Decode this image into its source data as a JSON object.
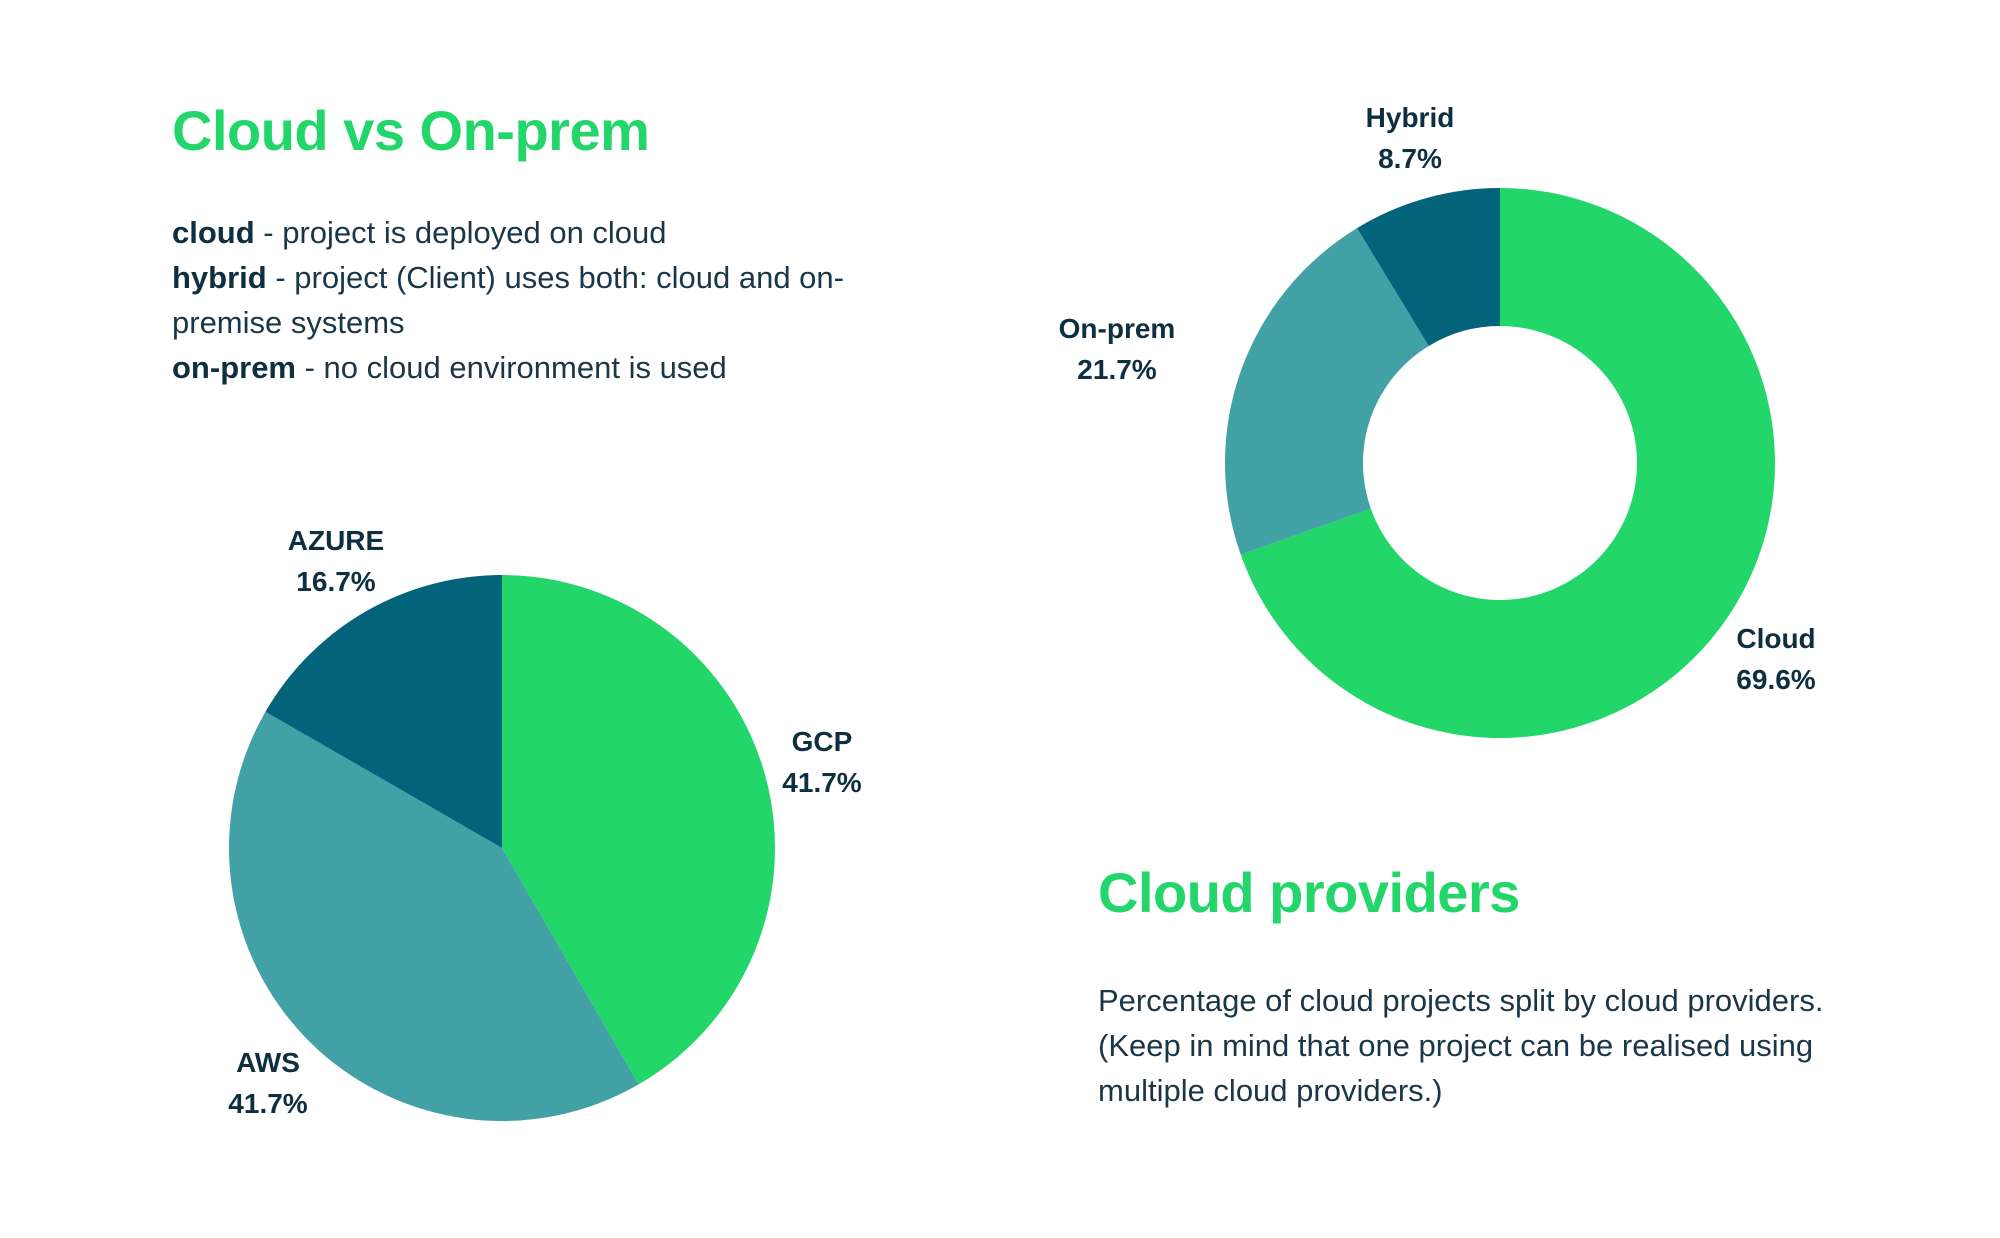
{
  "cloud_vs_onprem": {
    "title": "Cloud vs On-prem",
    "definitions": [
      {
        "term": "cloud",
        "text": " - project is deployed on cloud"
      },
      {
        "term": "hybrid",
        "text": " - project (Client) uses both: cloud and on-premise systems"
      },
      {
        "term": "on-prem",
        "text": " - no cloud environment is used"
      }
    ]
  },
  "cloud_providers": {
    "title": "Cloud providers",
    "description": "Percentage of cloud projects split by cloud providers. (Keep in mind that one project can be realised using multiple cloud providers.)"
  },
  "colors": {
    "green": "#22d66a",
    "teal": "#42a1a5",
    "dark_teal": "#03637a",
    "heading": "#22d66a",
    "label": "#0d2f3f"
  },
  "chart_data": [
    {
      "type": "pie",
      "variant": "donut",
      "title": "Cloud vs On-prem",
      "slices": [
        {
          "label": "Cloud",
          "value": 69.6,
          "display": "69.6%",
          "color": "#22d66a"
        },
        {
          "label": "On-prem",
          "value": 21.7,
          "display": "21.7%",
          "color": "#42a1a5"
        },
        {
          "label": "Hybrid",
          "value": 8.7,
          "display": "8.7%",
          "color": "#03637a"
        }
      ],
      "start": "12 o'clock",
      "direction": "clockwise",
      "legend": "labels outside slices"
    },
    {
      "type": "pie",
      "title": "Cloud providers",
      "slices": [
        {
          "label": "GCP",
          "value": 41.7,
          "display": "41.7%",
          "color": "#22d66a"
        },
        {
          "label": "AWS",
          "value": 41.7,
          "display": "41.7%",
          "color": "#42a1a5"
        },
        {
          "label": "AZURE",
          "value": 16.7,
          "display": "16.7%",
          "color": "#03637a"
        }
      ],
      "start": "12 o'clock",
      "direction": "clockwise",
      "legend": "labels outside slices"
    }
  ]
}
